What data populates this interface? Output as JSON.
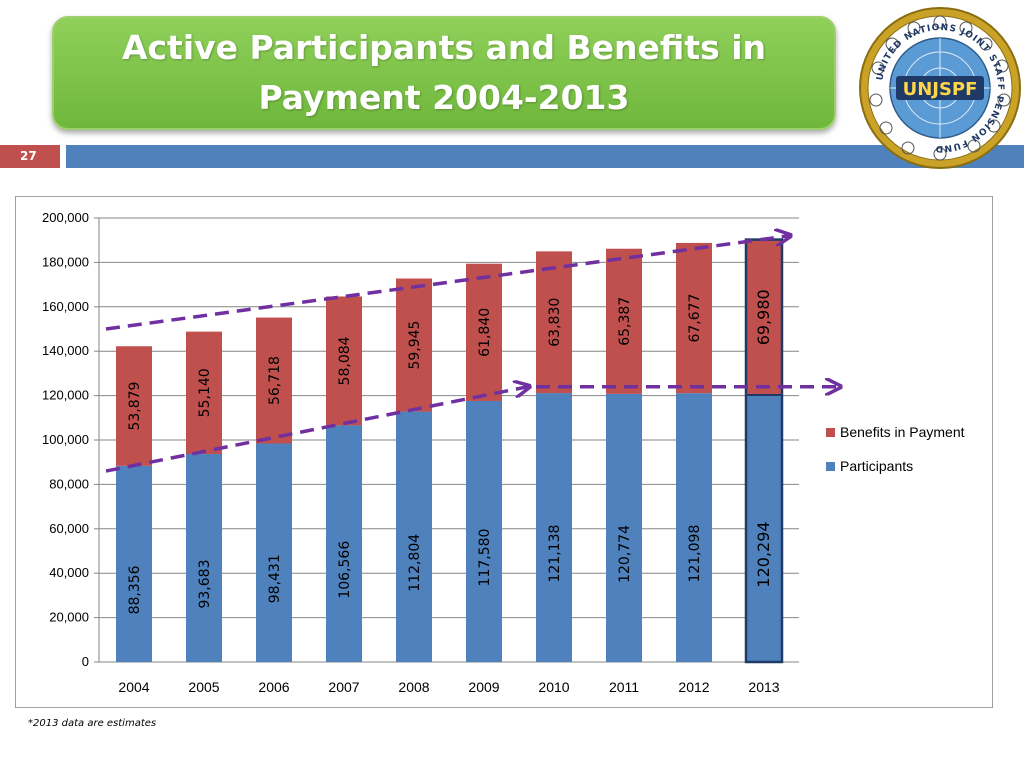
{
  "slide": {
    "title": "Active Participants and Benefits in Payment 2004-2013",
    "slide_number": "27",
    "footnote": "*2013 data are estimates",
    "logo_text": "UNJSPF",
    "logo_ring_text": "UNITED NATIONS JOINT STAFF PENSION FUND"
  },
  "colors": {
    "title_bg": "#7cc04a",
    "slide_number_bg": "#c0504d",
    "header_bar": "#4f81bd",
    "participants": "#4f81bd",
    "benefits": "#c0504d",
    "trend_arrow": "#7030a0"
  },
  "chart_data": {
    "type": "bar",
    "stacked": true,
    "categories": [
      "2004",
      "2005",
      "2006",
      "2007",
      "2008",
      "2009",
      "2010",
      "2011",
      "2012",
      "2013"
    ],
    "series": [
      {
        "name": "Participants",
        "color": "#4f81bd",
        "values": [
          88356,
          93683,
          98431,
          106566,
          112804,
          117580,
          121138,
          120774,
          121098,
          120294
        ],
        "labels": [
          "88,356",
          "93,683",
          "98,431",
          "106,566",
          "112,804",
          "117,580",
          "121,138",
          "120,774",
          "121,098",
          "120,294"
        ]
      },
      {
        "name": "Benefits in Payment",
        "color": "#c0504d",
        "values": [
          53879,
          55140,
          56718,
          58084,
          59945,
          61840,
          63830,
          65387,
          67677,
          69980
        ],
        "labels": [
          "53,879",
          "55,140",
          "56,718",
          "58,084",
          "59,945",
          "61,840",
          "63,830",
          "65,387",
          "67,677",
          "69,980"
        ]
      }
    ],
    "ylim": [
      0,
      200000
    ],
    "yticks": [
      0,
      20000,
      40000,
      60000,
      80000,
      100000,
      120000,
      140000,
      160000,
      180000,
      200000
    ],
    "ytick_labels": [
      "0",
      "20,000",
      "40,000",
      "60,000",
      "80,000",
      "100,000",
      "120,000",
      "140,000",
      "160,000",
      "180,000",
      "200,000"
    ],
    "grid": true,
    "legend": {
      "position": "right",
      "entries": [
        "Benefits in Payment",
        "Participants"
      ]
    },
    "highlighted_category": "2013",
    "annotations": {
      "trend_arrows": [
        {
          "from": [
            "2004",
            150000
          ],
          "to": [
            "2013",
            192000
          ]
        },
        {
          "from": [
            "2004",
            86000
          ],
          "to": [
            "2010",
            124000
          ]
        },
        {
          "from": [
            "2010",
            124000
          ],
          "to": [
            "2013",
            124000
          ]
        }
      ]
    }
  }
}
